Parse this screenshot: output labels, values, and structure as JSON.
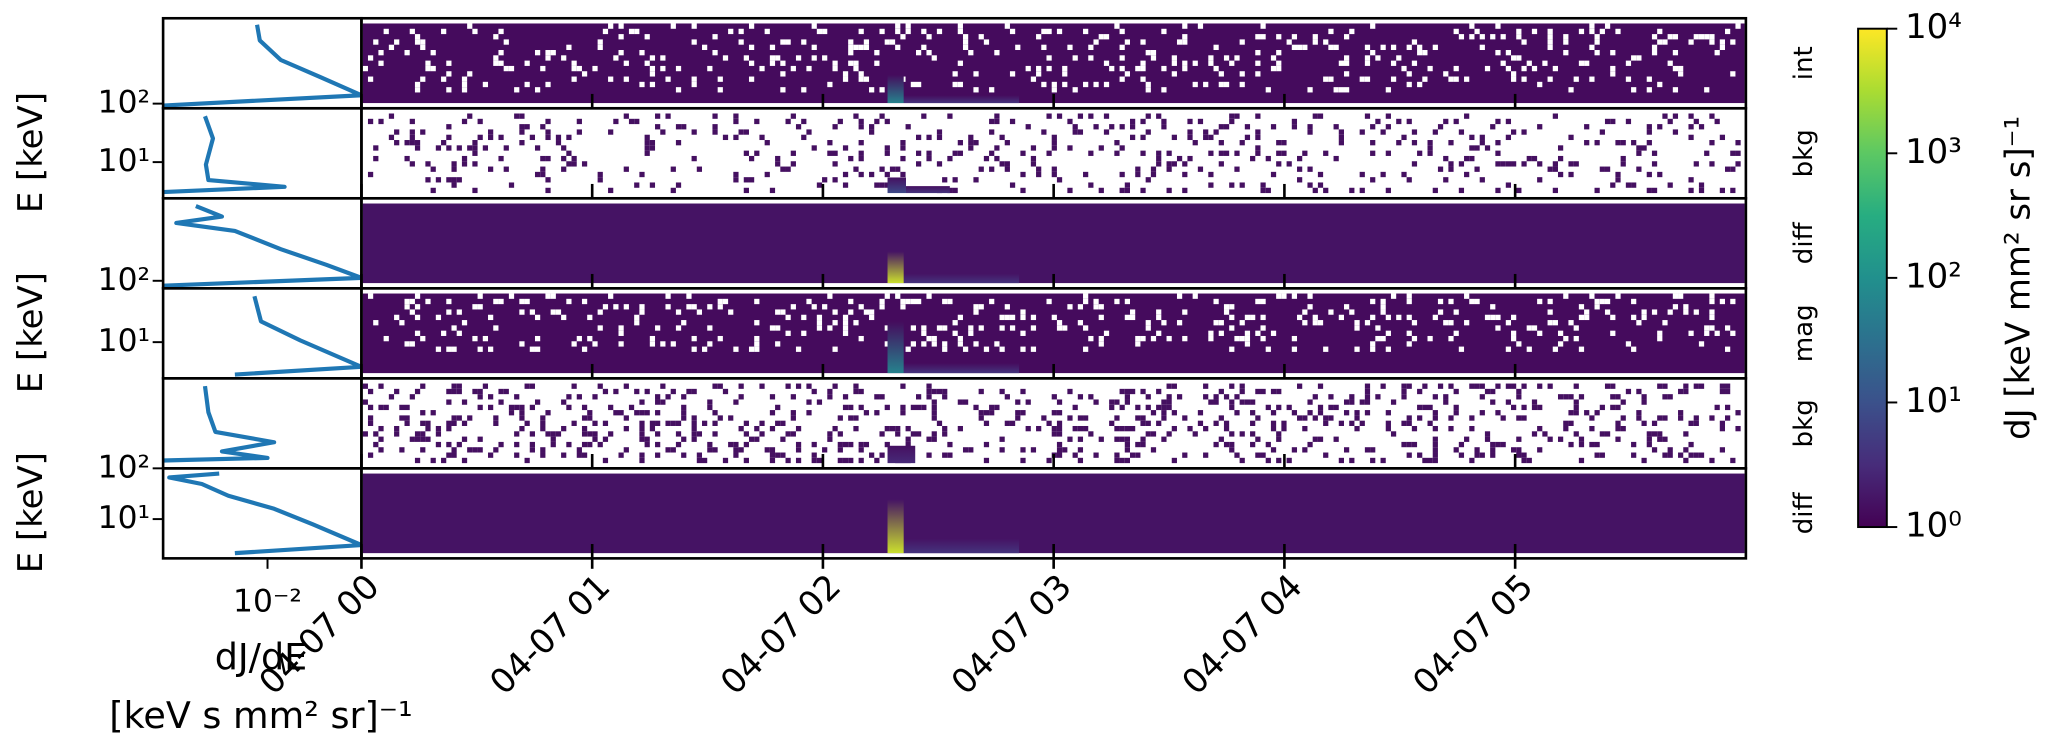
{
  "chart_data": {
    "type": "spectrogram",
    "xlim": [
      0,
      6
    ],
    "xticks": [
      {
        "value": 0,
        "label": "04-07 00"
      },
      {
        "value": 1,
        "label": "04-07 01"
      },
      {
        "value": 2,
        "label": "04-07 02"
      },
      {
        "value": 3,
        "label": "04-07 03"
      },
      {
        "value": 4,
        "label": "04-07 04"
      },
      {
        "value": 5,
        "label": "04-07 05"
      }
    ],
    "ylabel": "E [keV]",
    "colormap": "viridis",
    "colorbar": {
      "label": "dJ [keV mm² sr s]⁻¹",
      "log": true,
      "lim": [
        1,
        10000
      ],
      "ticks": [
        {
          "value": 1,
          "label": "10⁰"
        },
        {
          "value": 10,
          "label": "10¹"
        },
        {
          "value": 100,
          "label": "10²"
        },
        {
          "value": 1000,
          "label": "10³"
        },
        {
          "value": 10000,
          "label": "10⁴"
        }
      ]
    },
    "profile_xlabel": [
      "dJ/dE",
      "[keV s mm² sr]⁻¹"
    ],
    "profile_xlim": [
      1e-05,
      5
    ],
    "profile_xticks": [
      {
        "value": 0.01,
        "label": "10⁻²"
      }
    ],
    "profile_color": "#1f77b4",
    "panels": [
      {
        "name": "int",
        "ylim": [
          80,
          6000
        ],
        "yticks": [
          {
            "value": 100,
            "label": "10²"
          }
        ],
        "background": 1.3,
        "coverage": 0.88,
        "solid_below": 190,
        "burst": {
          "x": [
            2.28,
            2.35
          ],
          "top": 400,
          "value": 60
        },
        "tail": {
          "x": [
            2.35,
            2.85
          ],
          "top": 150,
          "value": 4
        },
        "profile": {
          "x": [
            0.005,
            0.006,
            0.024,
            0.32,
            5,
            1e-05
          ],
          "y": [
            4400,
            2070,
            810,
            359,
            150,
            91
          ]
        }
      },
      {
        "name": "bkg",
        "ylim": [
          3,
          60
        ],
        "yticks": [
          {
            "value": 10,
            "label": "10¹"
          }
        ],
        "background": 1.5,
        "coverage": 0.13,
        "solid_below": null,
        "burst": {
          "x": [
            2.28,
            2.36
          ],
          "top": 6,
          "value": 8
        },
        "tail": {
          "x": [
            2.36,
            2.55
          ],
          "top": 4.5,
          "value": 4
        },
        "profile": {
          "x": [
            0.00016,
            0.00027,
            0.00017,
            0.0002,
            0.031,
            1e-05
          ],
          "y": [
            46,
            22,
            9.2,
            5.5,
            4.4,
            3.7
          ]
        }
      },
      {
        "name": "diff",
        "ylim": [
          70,
          5000
        ],
        "yticks": [
          {
            "value": 100,
            "label": "10²"
          }
        ],
        "background": 1.6,
        "coverage": 1,
        "solid_below": null,
        "burst": {
          "x": [
            2.28,
            2.35
          ],
          "top": 400,
          "value": 5000
        },
        "tail": {
          "x": [
            2.35,
            2.85
          ],
          "top": 140,
          "value": 4
        },
        "profile": {
          "x": [
            8.7e-05,
            0.00049,
            2.4e-05,
            0.00115,
            0.024,
            0.49,
            5,
            1e-05
          ],
          "y": [
            3450,
            2100,
            1550,
            1065,
            448,
            213,
            115,
            79
          ]
        }
      },
      {
        "name": "mag",
        "ylim": [
          3,
          60
        ],
        "yticks": [
          {
            "value": 10,
            "label": "10¹"
          }
        ],
        "background": 1.3,
        "coverage": 0.86,
        "solid_below": 6.8,
        "burst": {
          "x": [
            2.28,
            2.35
          ],
          "top": 20,
          "value": 60
        },
        "tail": {
          "x": [
            2.35,
            2.85
          ],
          "top": 5,
          "value": 4
        },
        "profile": {
          "x": [
            0.0042,
            0.0065,
            0.087,
            5,
            0.00115
          ],
          "y": [
            46,
            20,
            10.6,
            4.4,
            3.4
          ]
        }
      },
      {
        "name": "bkg",
        "ylim": [
          100,
          8000
        ],
        "yticks": [
          {
            "value": 100,
            "label": "10²"
          }
        ],
        "background": 1.5,
        "coverage": 0.2,
        "solid_below": null,
        "burst": {
          "x": [
            2.28,
            2.4
          ],
          "top": 300,
          "value": 3
        },
        "tail": null,
        "profile": {
          "x": [
            0.00016,
            0.0002,
            0.00032,
            0.0155,
            0.00049,
            0.01,
            1e-05
          ],
          "y": [
            5460,
            1530,
            590,
            356,
            228,
            166,
            146
          ]
        }
      },
      {
        "name": "diff",
        "ylim": [
          2.5,
          60
        ],
        "yticks": [
          {
            "value": 10,
            "label": "10¹"
          }
        ],
        "background": 1.6,
        "coverage": 1,
        "solid_below": null,
        "burst": {
          "x": [
            2.28,
            2.35
          ],
          "top": 20,
          "value": 5000
        },
        "tail": {
          "x": [
            2.35,
            2.85
          ],
          "top": 5,
          "value": 4
        },
        "profile": {
          "x": [
            0.00041,
            1.5e-05,
            0.00013,
            0.00075,
            0.0155,
            0.2,
            5,
            0.00115
          ],
          "y": [
            50,
            43.5,
            34.5,
            22.8,
            14.4,
            8.3,
            4,
            3
          ]
        }
      }
    ]
  }
}
